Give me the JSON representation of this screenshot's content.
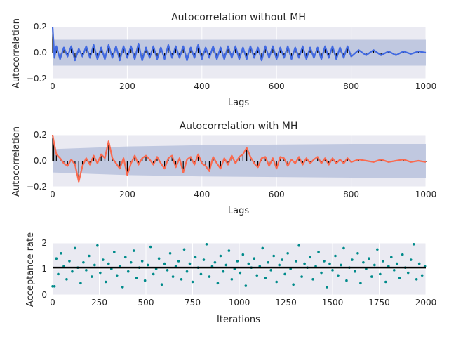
{
  "chart_data": [
    {
      "type": "line",
      "title": "Autocorrelation without MH",
      "xlabel": "Lags",
      "ylabel": "Autocorrelation",
      "xlim": [
        0,
        1000
      ],
      "ylim": [
        -0.2,
        0.2
      ],
      "xticks": [
        "0",
        "200",
        "400",
        "600",
        "800",
        "1000"
      ],
      "yticks": [
        "−0.2",
        "0.0",
        "0.2"
      ],
      "grid": true,
      "series_color": "#4169e1",
      "band_color": "#b8c2dd",
      "band": {
        "x": [
          0,
          1000
        ],
        "lower": [
          -0.1,
          -0.1
        ],
        "upper": [
          0.1,
          0.1
        ]
      },
      "series": [
        {
          "x": [
            0,
            5,
            10,
            20,
            30,
            40,
            50,
            60,
            70,
            80,
            90,
            100,
            110,
            120,
            130,
            140,
            150,
            160,
            170,
            180,
            190,
            200,
            210,
            220,
            230,
            240,
            250,
            260,
            270,
            280,
            290,
            300,
            310,
            320,
            330,
            340,
            350,
            360,
            370,
            380,
            390,
            400,
            410,
            420,
            430,
            440,
            450,
            460,
            470,
            480,
            490,
            500,
            510,
            520,
            530,
            540,
            550,
            560,
            570,
            580,
            590,
            600,
            610,
            620,
            630,
            640,
            650,
            660,
            670,
            680,
            690,
            700,
            710,
            720,
            730,
            740,
            750,
            760,
            770,
            780,
            790,
            800,
            820,
            840,
            860,
            880,
            900,
            920,
            940,
            960,
            980,
            1000
          ],
          "y": [
            0.2,
            -0.04,
            0.05,
            -0.05,
            0.04,
            -0.03,
            0.05,
            -0.06,
            0.03,
            -0.03,
            0.05,
            -0.04,
            0.06,
            -0.05,
            0.04,
            -0.05,
            0.06,
            -0.04,
            0.05,
            -0.06,
            0.05,
            -0.04,
            0.05,
            -0.05,
            0.07,
            -0.06,
            0.04,
            -0.04,
            0.05,
            -0.05,
            0.04,
            -0.05,
            0.06,
            -0.04,
            0.05,
            -0.04,
            0.05,
            -0.06,
            0.04,
            -0.04,
            0.06,
            -0.05,
            0.04,
            -0.04,
            0.05,
            -0.05,
            0.04,
            -0.05,
            0.05,
            -0.04,
            0.05,
            -0.05,
            0.04,
            -0.05,
            0.05,
            -0.04,
            0.04,
            -0.06,
            0.05,
            -0.04,
            0.05,
            -0.05,
            0.04,
            -0.04,
            0.05,
            -0.05,
            0.04,
            -0.04,
            0.05,
            -0.05,
            0.04,
            -0.04,
            0.04,
            -0.05,
            0.05,
            -0.04,
            0.05,
            -0.05,
            0.04,
            -0.04,
            0.05,
            -0.03,
            0.02,
            -0.02,
            0.02,
            -0.02,
            0.01,
            -0.02,
            0.01,
            -0.01,
            0.01,
            0.0
          ]
        }
      ]
    },
    {
      "type": "line",
      "title": "Autocorrelation with MH",
      "xlabel": "Lags",
      "ylabel": "Autocorrelation",
      "xlim": [
        0,
        1000
      ],
      "ylim": [
        -0.2,
        0.2
      ],
      "xticks": [
        "0",
        "200",
        "400",
        "600",
        "800",
        "1000"
      ],
      "yticks": [
        "−0.2",
        "0.0",
        "0.2"
      ],
      "grid": true,
      "series_color": "#fa6a4f",
      "band_color": "#b8c2dd",
      "band": {
        "x": [
          0,
          200,
          400,
          600,
          800,
          1000
        ],
        "lower": [
          -0.09,
          -0.11,
          -0.12,
          -0.125,
          -0.13,
          -0.13
        ],
        "upper": [
          0.09,
          0.11,
          0.12,
          0.125,
          0.13,
          0.13
        ]
      },
      "series": [
        {
          "x": [
            0,
            3,
            10,
            20,
            30,
            40,
            50,
            60,
            70,
            80,
            90,
            100,
            110,
            120,
            130,
            140,
            150,
            160,
            170,
            180,
            190,
            200,
            210,
            220,
            230,
            240,
            250,
            260,
            270,
            280,
            290,
            300,
            310,
            320,
            330,
            340,
            350,
            360,
            370,
            380,
            390,
            400,
            410,
            420,
            430,
            440,
            450,
            460,
            470,
            480,
            490,
            500,
            510,
            520,
            530,
            540,
            550,
            560,
            570,
            580,
            590,
            600,
            610,
            620,
            630,
            640,
            650,
            660,
            670,
            680,
            690,
            700,
            710,
            720,
            730,
            740,
            750,
            760,
            770,
            780,
            790,
            800,
            820,
            840,
            860,
            880,
            900,
            920,
            940,
            960,
            980,
            1000
          ],
          "y": [
            0.2,
            0.15,
            0.05,
            0.02,
            -0.02,
            -0.04,
            0.01,
            -0.03,
            -0.16,
            -0.04,
            0.02,
            -0.03,
            0.04,
            -0.02,
            0.05,
            0.02,
            0.15,
            0.02,
            -0.02,
            -0.06,
            0.02,
            -0.11,
            -0.02,
            0.04,
            -0.03,
            0.02,
            0.04,
            0.01,
            -0.03,
            0.03,
            -0.02,
            -0.06,
            0.02,
            0.04,
            -0.05,
            0.02,
            -0.09,
            0.01,
            0.03,
            -0.03,
            0.05,
            -0.02,
            -0.04,
            -0.08,
            0.03,
            -0.02,
            -0.06,
            0.02,
            -0.03,
            0.04,
            -0.02,
            0.03,
            0.05,
            0.1,
            0.03,
            -0.02,
            -0.05,
            0.02,
            0.03,
            -0.04,
            0.02,
            -0.06,
            0.03,
            0.02,
            -0.04,
            0.01,
            -0.02,
            0.03,
            -0.03,
            0.02,
            -0.02,
            0.01,
            0.03,
            -0.02,
            0.02,
            -0.03,
            0.02,
            -0.02,
            0.01,
            -0.02,
            0.02,
            -0.01,
            0.01,
            0.0,
            -0.01,
            0.01,
            -0.01,
            0.0,
            0.01,
            -0.01,
            0.0,
            -0.01
          ]
        }
      ]
    },
    {
      "type": "scatter",
      "title": "",
      "xlabel": "Iterations",
      "ylabel": "Acceptance rate",
      "xlim": [
        0,
        2000
      ],
      "ylim": [
        0,
        2
      ],
      "xticks": [
        "0",
        "250",
        "500",
        "750",
        "1000",
        "1250",
        "1500",
        "1750",
        "2000"
      ],
      "yticks": [
        "0",
        "1",
        "2"
      ],
      "grid": true,
      "point_color": "#008b8b",
      "mean_line": 1.05,
      "mean_line_color": "#000000",
      "series": [
        {
          "x": [
            0,
            10,
            20,
            30,
            45,
            60,
            75,
            90,
            105,
            120,
            135,
            150,
            165,
            180,
            195,
            210,
            225,
            240,
            255,
            270,
            285,
            300,
            315,
            330,
            345,
            360,
            375,
            390,
            405,
            420,
            435,
            450,
            465,
            480,
            495,
            510,
            525,
            540,
            555,
            570,
            585,
            600,
            615,
            630,
            645,
            660,
            675,
            690,
            705,
            720,
            735,
            750,
            765,
            780,
            795,
            810,
            825,
            840,
            855,
            870,
            885,
            900,
            915,
            930,
            945,
            960,
            975,
            990,
            1005,
            1020,
            1035,
            1050,
            1065,
            1080,
            1095,
            1110,
            1125,
            1140,
            1155,
            1170,
            1185,
            1200,
            1215,
            1230,
            1245,
            1260,
            1275,
            1290,
            1305,
            1320,
            1335,
            1350,
            1365,
            1380,
            1395,
            1410,
            1425,
            1440,
            1455,
            1470,
            1485,
            1500,
            1515,
            1530,
            1545,
            1560,
            1575,
            1590,
            1605,
            1620,
            1635,
            1650,
            1665,
            1680,
            1695,
            1710,
            1725,
            1740,
            1755,
            1770,
            1785,
            1800,
            1815,
            1830,
            1845,
            1860,
            1875,
            1890,
            1905,
            1920,
            1935,
            1950,
            1965,
            1980,
            1995
          ],
          "y": [
            0.33,
            0.33,
            1.4,
            0.8,
            1.6,
            1.1,
            0.6,
            1.3,
            0.9,
            1.8,
            1.05,
            0.45,
            1.25,
            0.95,
            1.5,
            0.7,
            1.15,
            1.9,
            0.85,
            1.35,
            0.5,
            1.2,
            1.0,
            1.65,
            0.75,
            1.1,
            0.3,
            1.45,
            0.9,
            1.25,
            1.7,
            0.65,
            1.05,
            1.3,
            0.55,
            1.15,
            1.85,
            0.8,
            1.0,
            1.4,
            0.4,
            1.2,
            0.95,
            1.6,
            0.7,
            1.1,
            1.3,
            0.6,
            1.75,
            0.9,
            1.2,
            0.5,
            1.45,
            1.05,
            0.8,
            1.35,
            1.95,
            0.7,
            1.1,
            1.25,
            0.45,
            1.5,
            0.9,
            1.15,
            1.7,
            0.6,
            1.0,
            1.3,
            0.85,
            1.55,
            0.35,
            1.2,
            1.05,
            1.4,
            0.75,
            1.1,
            1.8,
            0.65,
            1.25,
            0.95,
            1.5,
            0.5,
            1.15,
            1.35,
            0.8,
            1.6,
            1.0,
            0.4,
            1.3,
            1.9,
            0.7,
            1.2,
            1.05,
            1.45,
            0.6,
            1.1,
            1.65,
            0.85,
            1.3,
            0.3,
            1.2,
            0.95,
            1.5,
            0.75,
            1.15,
            1.8,
            0.55,
            1.05,
            1.35,
            0.9,
            1.6,
            0.45,
            1.25,
            1.0,
            1.4,
            0.7,
            1.15,
            1.75,
            0.8,
            1.3,
            0.5,
            1.1,
            1.45,
            0.95,
            1.2,
            0.65,
            1.55,
            1.05,
            0.85,
            1.35,
            1.95,
            0.6,
            1.2,
            0.75,
            1.1
          ]
        }
      ]
    }
  ]
}
